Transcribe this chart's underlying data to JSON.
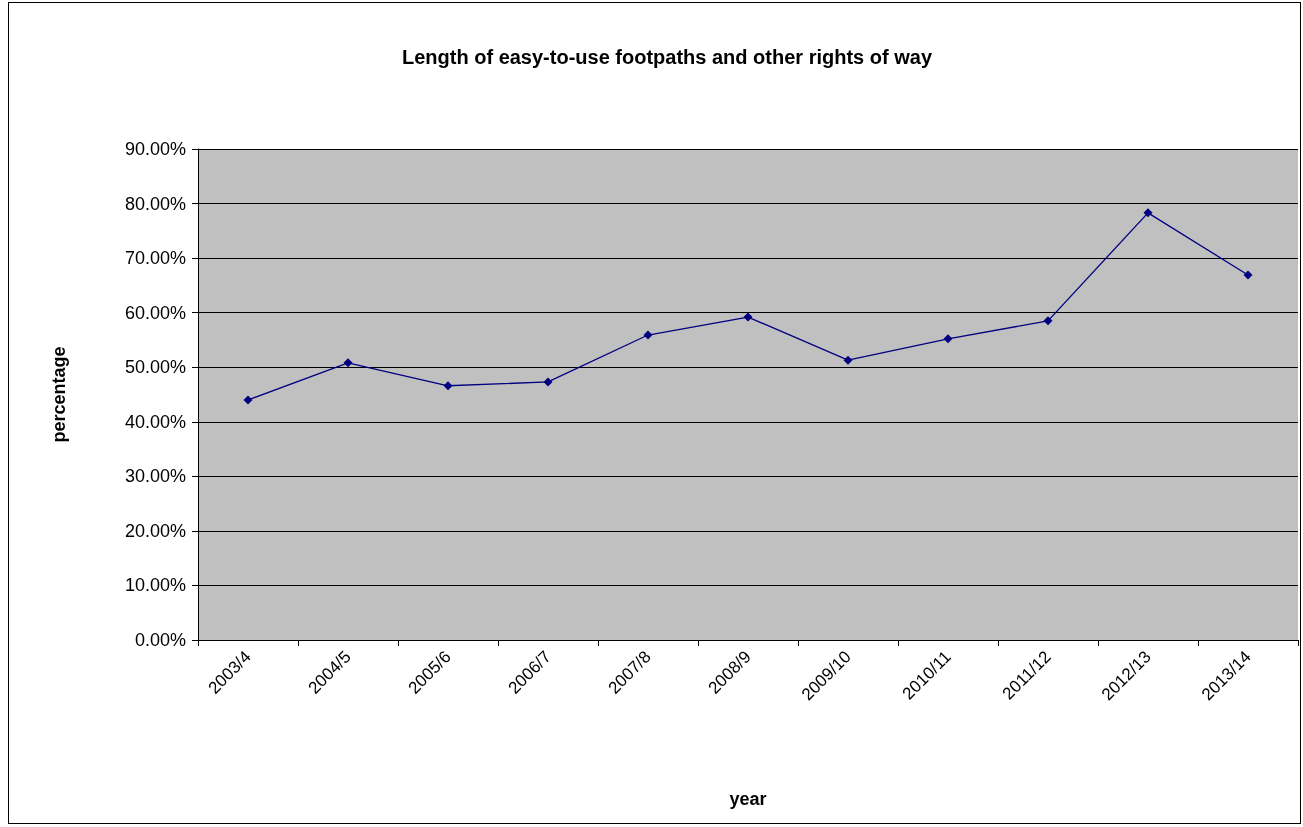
{
  "chart_data": {
    "type": "line",
    "title": "Length of easy-to-use footpaths and other rights of way",
    "xlabel": "year",
    "ylabel": "percentage",
    "categories": [
      "2003/4",
      "2004/5",
      "2005/6",
      "2006/7",
      "2007/8",
      "2008/9",
      "2009/10",
      "2010/11",
      "2011/12",
      "2012/13",
      "2013/14"
    ],
    "series": [
      {
        "color": "#000080",
        "values": [
          44.0,
          50.8,
          46.6,
          47.3,
          55.9,
          59.2,
          51.3,
          55.2,
          58.5,
          78.3,
          66.9
        ]
      }
    ],
    "ylim": [
      0,
      90
    ],
    "yticks": [
      {
        "value": 0,
        "label": "0.00%"
      },
      {
        "value": 10,
        "label": "10.00%"
      },
      {
        "value": 20,
        "label": "20.00%"
      },
      {
        "value": 30,
        "label": "30.00%"
      },
      {
        "value": 40,
        "label": "40.00%"
      },
      {
        "value": 50,
        "label": "50.00%"
      },
      {
        "value": 60,
        "label": "60.00%"
      },
      {
        "value": 70,
        "label": "70.00%"
      },
      {
        "value": 80,
        "label": "80.00%"
      },
      {
        "value": 90,
        "label": "90.00%"
      }
    ],
    "grid": "y",
    "marker": "diamond",
    "line_style": "solid"
  }
}
